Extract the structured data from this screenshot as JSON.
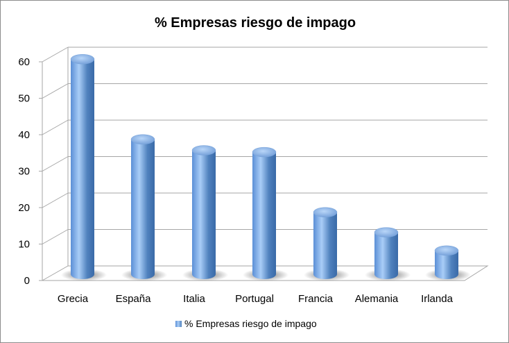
{
  "chart_data": {
    "type": "bar",
    "title": "% Empresas riesgo de impago",
    "categories": [
      "Grecia",
      "España",
      "Italia",
      "Portugal",
      "Francia",
      "Alemania",
      "Irlanda"
    ],
    "series": [
      {
        "name": "% Empresas riesgo de impago",
        "values": [
          59,
          37,
          34,
          33.5,
          17,
          11.5,
          6.5
        ]
      }
    ],
    "ylim": [
      0,
      60
    ],
    "yticks": [
      "0",
      "10",
      "20",
      "30",
      "40",
      "50",
      "60"
    ],
    "grid": true,
    "legend": "bottom",
    "colors": {
      "bar": "#4f81bd",
      "bar_light": "#a9cdf7",
      "grid": "#a6a6a6"
    }
  }
}
